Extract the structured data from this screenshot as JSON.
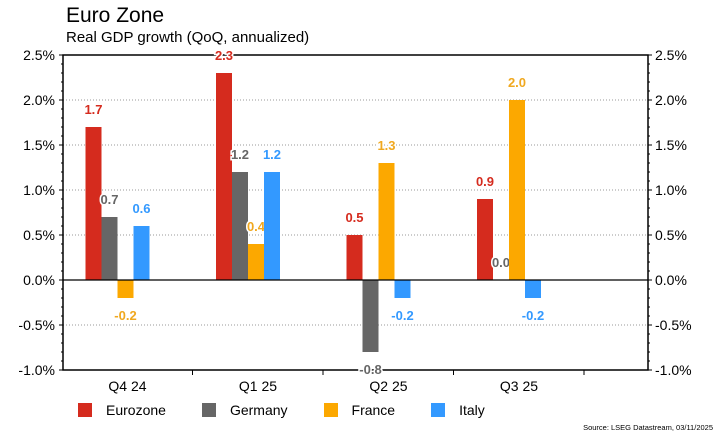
{
  "title": "Euro Zone",
  "subtitle": "Real GDP growth (QoQ, annualized)",
  "source": "Source: LSEG Datastream, 03/11/2025",
  "chart_data": {
    "type": "bar",
    "categories": [
      "Q4 24",
      "Q1 25",
      "Q2 25",
      "Q3 25"
    ],
    "series": [
      {
        "name": "Eurozone",
        "color": "#d52b1e",
        "values": [
          1.7,
          2.3,
          0.5,
          0.9
        ]
      },
      {
        "name": "Germany",
        "color": "#666666",
        "values": [
          0.7,
          1.2,
          -0.8,
          0.0
        ]
      },
      {
        "name": "France",
        "color": "#fca800",
        "values": [
          -0.2,
          0.4,
          1.3,
          2.0
        ]
      },
      {
        "name": "Italy",
        "color": "#3399ff",
        "values": [
          0.6,
          1.2,
          -0.2,
          -0.2
        ]
      }
    ],
    "ylim": [
      -1.0,
      2.5
    ],
    "yticks": [
      "-1.0%",
      "-0.5%",
      "0.0%",
      "0.5%",
      "1.0%",
      "1.5%",
      "2.0%",
      "2.5%"
    ],
    "grid": true,
    "legend": "bottom",
    "label_colors": [
      "#d52b1e",
      "#666666",
      "#f0a81f",
      "#3399ff"
    ]
  }
}
